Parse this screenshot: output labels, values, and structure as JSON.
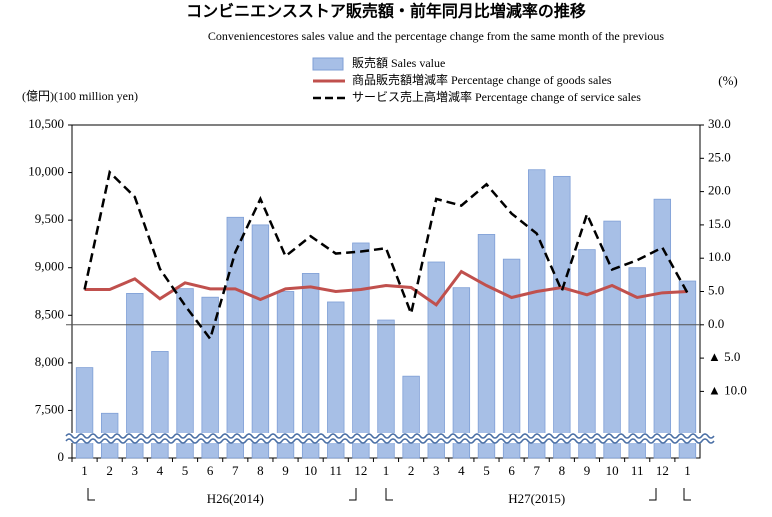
{
  "chart_data": {
    "type": "bar-line",
    "title": "コンビニエンスストア販売額・前年同月比増減率の推移",
    "subtitle": "Conveniencestores sales value and the percentage change from the same month of the previous",
    "y_label": "(億円)(100 million yen)",
    "y2_label": "(%)",
    "categories": [
      "1",
      "2",
      "3",
      "4",
      "5",
      "6",
      "7",
      "8",
      "9",
      "10",
      "11",
      "12",
      "1",
      "2",
      "3",
      "4",
      "5",
      "6",
      "7",
      "8",
      "9",
      "10",
      "11",
      "12",
      "1"
    ],
    "groups": [
      {
        "label": "H26(2014)",
        "from": 0,
        "to": 12
      },
      {
        "label": "H27(2015)",
        "from": 12,
        "to": 24
      }
    ],
    "axis_break": true,
    "ylim": [
      7000,
      10500
    ],
    "yticks": [
      {
        "value": 0,
        "label": "0"
      },
      {
        "value": 7500,
        "label": "7,500"
      },
      {
        "value": 8000,
        "label": "8,000"
      },
      {
        "value": 8500,
        "label": "8,500"
      },
      {
        "value": 9000,
        "label": "9,000"
      },
      {
        "value": 9500,
        "label": "9,500"
      },
      {
        "value": 10000,
        "label": "10,000"
      },
      {
        "value": 10500,
        "label": "10,500"
      }
    ],
    "y2lim": [
      -20,
      30
    ],
    "y2ticks": [
      {
        "value": -10,
        "label": "▲ 10.0"
      },
      {
        "value": -5,
        "label": "▲ 5.0"
      },
      {
        "value": 0,
        "label": "0.0"
      },
      {
        "value": 5,
        "label": "5.0"
      },
      {
        "value": 10,
        "label": "10.0"
      },
      {
        "value": 15,
        "label": "15.0"
      },
      {
        "value": 20,
        "label": "20.0"
      },
      {
        "value": 25,
        "label": "25.0"
      },
      {
        "value": 30,
        "label": "30.0"
      }
    ],
    "zero_line_y2": true,
    "series": [
      {
        "name": "販売額 Sales value",
        "kind": "bar",
        "color": "#a7bfe6",
        "values": [
          7950,
          7470,
          8730,
          8120,
          8780,
          8690,
          9530,
          9450,
          8750,
          8940,
          8640,
          9260,
          8450,
          7860,
          9060,
          8790,
          9350,
          9090,
          10030,
          9960,
          9190,
          9490,
          9000,
          9720,
          8860
        ]
      },
      {
        "name": "商品販売額増減率 Percentage change of goods sales",
        "kind": "line",
        "axis": "y2",
        "color": "#c0504d",
        "values": [
          5.3,
          5.3,
          6.9,
          3.9,
          6.3,
          5.4,
          5.4,
          3.8,
          5.4,
          5.7,
          5.0,
          5.3,
          5.9,
          5.6,
          3.0,
          8.0,
          5.9,
          4.1,
          5.0,
          5.6,
          4.5,
          5.9,
          4.1,
          4.8,
          5.0
        ]
      },
      {
        "name": "サービス売上高増減率 Percentage change of service sales",
        "kind": "dashed-line",
        "axis": "y2",
        "color": "#000000",
        "values": [
          5.3,
          22.9,
          19.2,
          8.4,
          2.9,
          -2.1,
          10.9,
          18.9,
          10.3,
          13.3,
          10.7,
          11.0,
          11.5,
          1.7,
          18.9,
          17.9,
          21.1,
          16.7,
          13.7,
          5.1,
          16.6,
          8.3,
          9.7,
          11.6,
          4.8
        ]
      }
    ]
  }
}
